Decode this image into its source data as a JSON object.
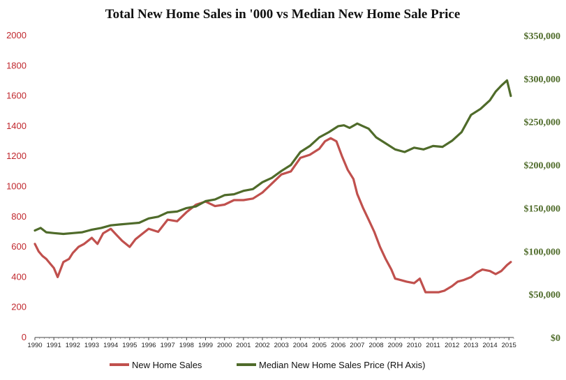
{
  "chart_data": {
    "type": "line",
    "title": "Total New Home Sales in '000 vs Median New Home Sale Price",
    "xlabel": "",
    "ylabel": "",
    "xlim": [
      1990,
      2015.25
    ],
    "x_ticks": [
      "1990",
      "1991",
      "1992",
      "1993",
      "1994",
      "1995",
      "1996",
      "1997",
      "1998",
      "1999",
      "2000",
      "2001",
      "2002",
      "2003",
      "2004",
      "2005",
      "2006",
      "2007",
      "2008",
      "2009",
      "2010",
      "2011",
      "2012",
      "2013",
      "2014",
      "2015"
    ],
    "left_axis": {
      "ylim": [
        0,
        2000
      ],
      "ticks": [
        "0",
        "200",
        "400",
        "600",
        "800",
        "1000",
        "1200",
        "1400",
        "1600",
        "1800",
        "2000"
      ],
      "color": "#c0272d"
    },
    "right_axis": {
      "ylim": [
        0,
        350000
      ],
      "ticks": [
        "$0",
        "$50,000",
        "$100,000",
        "$150,000",
        "$200,000",
        "$250,000",
        "$300,000",
        "$350,000"
      ],
      "color": "#4f6b2a"
    },
    "grid": false,
    "legend_position": "bottom-center",
    "series": [
      {
        "name": "New Home Sales",
        "axis": "left",
        "color": "#c0504d",
        "x": [
          1990.0,
          1990.2,
          1990.4,
          1990.6,
          1990.8,
          1991.0,
          1991.2,
          1991.5,
          1991.8,
          1992.0,
          1992.3,
          1992.6,
          1993.0,
          1993.3,
          1993.6,
          1994.0,
          1994.3,
          1994.6,
          1995.0,
          1995.3,
          1995.6,
          1996.0,
          1996.5,
          1997.0,
          1997.5,
          1998.0,
          1998.5,
          1999.0,
          1999.5,
          2000.0,
          2000.5,
          2001.0,
          2001.5,
          2002.0,
          2002.5,
          2003.0,
          2003.5,
          2004.0,
          2004.5,
          2005.0,
          2005.3,
          2005.6,
          2005.9,
          2006.2,
          2006.5,
          2006.8,
          2007.0,
          2007.3,
          2007.6,
          2007.9,
          2008.2,
          2008.5,
          2008.8,
          2009.0,
          2009.3,
          2009.6,
          2010.0,
          2010.3,
          2010.6,
          2011.0,
          2011.3,
          2011.6,
          2012.0,
          2012.3,
          2012.6,
          2013.0,
          2013.3,
          2013.6,
          2014.0,
          2014.3,
          2014.6,
          2014.9,
          2015.1
        ],
        "values": [
          620,
          570,
          540,
          520,
          490,
          460,
          400,
          500,
          520,
          560,
          600,
          620,
          660,
          620,
          690,
          720,
          680,
          640,
          600,
          650,
          680,
          720,
          700,
          780,
          770,
          830,
          880,
          900,
          870,
          880,
          910,
          910,
          920,
          960,
          1020,
          1080,
          1100,
          1190,
          1210,
          1250,
          1300,
          1320,
          1300,
          1200,
          1110,
          1050,
          950,
          860,
          780,
          700,
          600,
          520,
          450,
          390,
          380,
          370,
          360,
          390,
          300,
          300,
          300,
          310,
          340,
          370,
          380,
          400,
          430,
          450,
          440,
          420,
          440,
          480,
          500
        ]
      },
      {
        "name": "Median New Home Sales Price (RH Axis)",
        "axis": "right",
        "color": "#4f6b2a",
        "x": [
          1990.0,
          1990.3,
          1990.6,
          1991.0,
          1991.5,
          1992.0,
          1992.5,
          1993.0,
          1993.5,
          1994.0,
          1994.5,
          1995.0,
          1995.5,
          1996.0,
          1996.5,
          1997.0,
          1997.5,
          1998.0,
          1998.5,
          1999.0,
          1999.5,
          2000.0,
          2000.5,
          2001.0,
          2001.5,
          2002.0,
          2002.5,
          2003.0,
          2003.5,
          2004.0,
          2004.5,
          2005.0,
          2005.5,
          2006.0,
          2006.3,
          2006.6,
          2007.0,
          2007.3,
          2007.6,
          2008.0,
          2008.5,
          2009.0,
          2009.5,
          2010.0,
          2010.5,
          2011.0,
          2011.5,
          2012.0,
          2012.5,
          2013.0,
          2013.5,
          2014.0,
          2014.3,
          2014.6,
          2014.9,
          2015.1
        ],
        "values": [
          124000,
          127000,
          122000,
          121000,
          120000,
          121000,
          122000,
          125000,
          127000,
          130000,
          131000,
          132000,
          133000,
          138000,
          140000,
          145000,
          146000,
          150000,
          152000,
          158000,
          160000,
          165000,
          166000,
          170000,
          172000,
          180000,
          185000,
          193000,
          200000,
          215000,
          222000,
          232000,
          238000,
          245000,
          246000,
          243000,
          248000,
          245000,
          242000,
          232000,
          225000,
          218000,
          215000,
          220000,
          218000,
          222000,
          221000,
          228000,
          238000,
          258000,
          265000,
          275000,
          285000,
          292000,
          298000,
          280000
        ]
      }
    ]
  }
}
